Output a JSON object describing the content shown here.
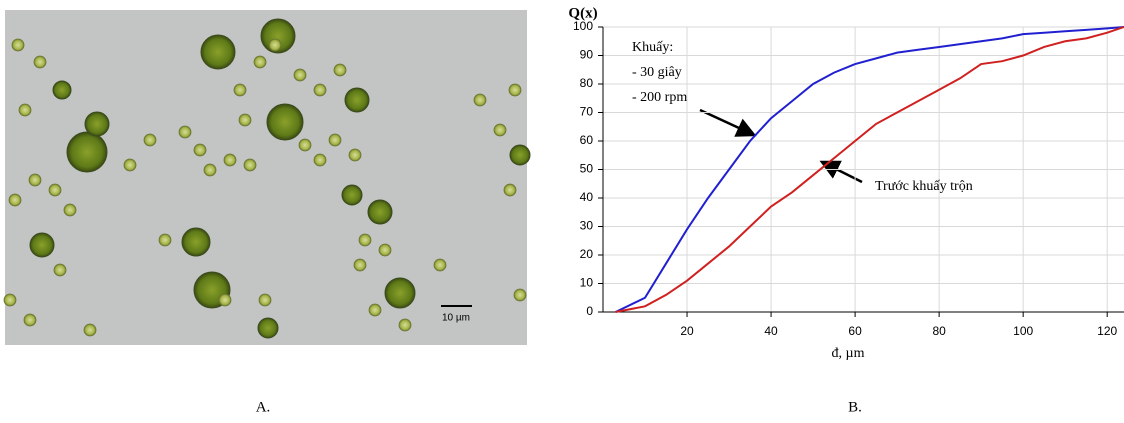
{
  "image_panel": {
    "scale_label": "10 µm",
    "caption": "A."
  },
  "chart_data": {
    "type": "line",
    "caption": "B.",
    "ylabel": "Q(x)",
    "xlabel": "đ, µm",
    "x": [
      3,
      10,
      15,
      20,
      25,
      30,
      35,
      40,
      45,
      50,
      55,
      60,
      65,
      70,
      75,
      80,
      85,
      90,
      95,
      100,
      105,
      110,
      115,
      120,
      124
    ],
    "series": [
      {
        "name": "Khuấy:",
        "color": "#2020d0",
        "values": [
          0,
          5,
          17,
          29,
          40,
          50,
          60,
          68,
          74,
          80,
          84,
          87,
          89,
          91,
          92,
          93,
          94,
          95,
          96,
          97.5,
          98,
          98.5,
          99,
          99.5,
          100
        ]
      },
      {
        "name": "Trước khuấy trộn",
        "color": "#d02020",
        "values": [
          0,
          2,
          6,
          11,
          17,
          23,
          30,
          37,
          42,
          48,
          54,
          60,
          66,
          70,
          74,
          78,
          82,
          87,
          88,
          90,
          93,
          95,
          96,
          98,
          100
        ]
      }
    ],
    "annotations": [
      "- 30 giây",
      "- 200 rpm"
    ],
    "xlim": [
      0,
      124
    ],
    "ylim": [
      0,
      100
    ],
    "xticks": [
      20,
      40,
      60,
      80,
      100,
      120
    ],
    "yticks": [
      0,
      10,
      20,
      30,
      40,
      50,
      60,
      70,
      80,
      90,
      100
    ],
    "grid": true
  }
}
